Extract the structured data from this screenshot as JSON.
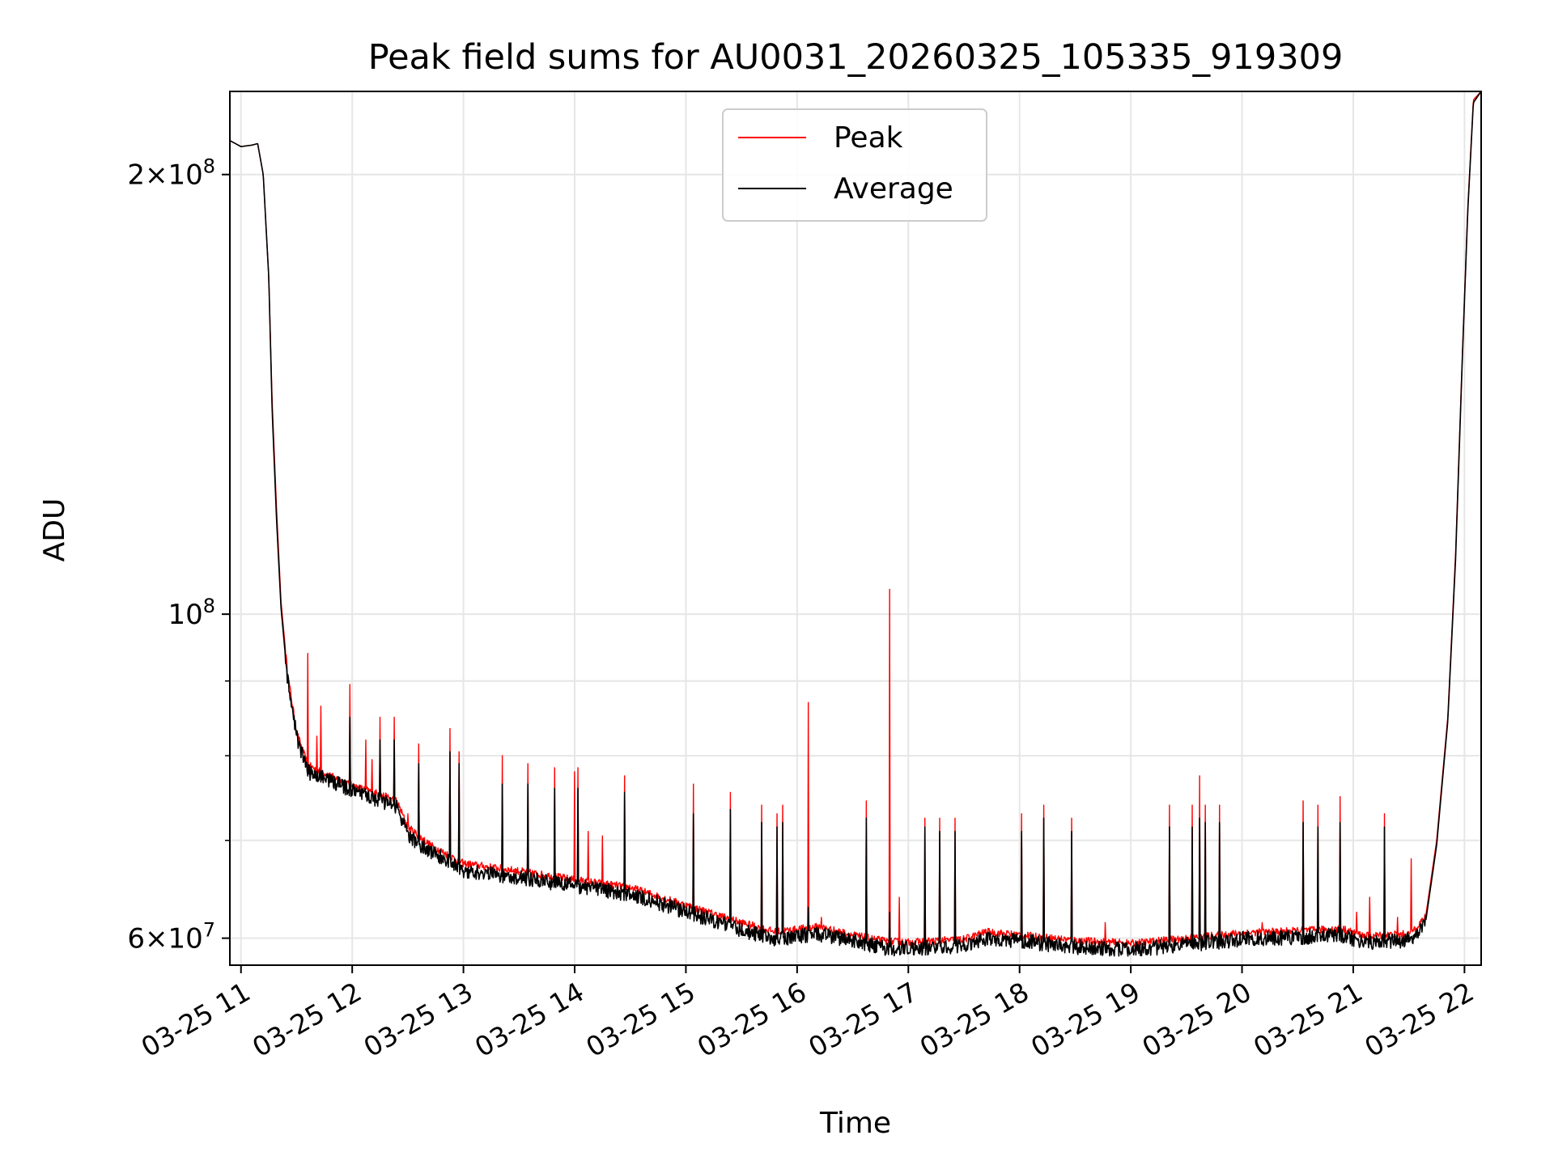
{
  "chart_data": {
    "type": "line",
    "title": "Peak field sums for AU0031_20260325_105335_919309",
    "xlabel": "Time",
    "ylabel": "ADU",
    "yscale": "log",
    "ylim": [
      57500000,
      228000000
    ],
    "xlim_hours": [
      10.9,
      22.15
    ],
    "grid": true,
    "legend_location": "upper center",
    "x_ticks": [
      {
        "hour": 11,
        "label": "03-25 11"
      },
      {
        "hour": 12,
        "label": "03-25 12"
      },
      {
        "hour": 13,
        "label": "03-25 13"
      },
      {
        "hour": 14,
        "label": "03-25 14"
      },
      {
        "hour": 15,
        "label": "03-25 15"
      },
      {
        "hour": 16,
        "label": "03-25 16"
      },
      {
        "hour": 17,
        "label": "03-25 17"
      },
      {
        "hour": 18,
        "label": "03-25 18"
      },
      {
        "hour": 19,
        "label": "03-25 19"
      },
      {
        "hour": 20,
        "label": "03-25 20"
      },
      {
        "hour": 21,
        "label": "03-25 21"
      },
      {
        "hour": 22,
        "label": "03-25 22"
      }
    ],
    "y_ticks_major": [
      {
        "value": 60000000,
        "base": "6×10",
        "exp": "7"
      },
      {
        "value": 100000000,
        "base": "10",
        "exp": "8"
      },
      {
        "value": 200000000,
        "base": "2×10",
        "exp": "8"
      }
    ],
    "y_ticks_minor": [
      70000000,
      80000000,
      90000000
    ],
    "series": [
      {
        "name": "Peak",
        "color": "#ff0000",
        "baseline": [
          [
            10.9,
            211000000
          ],
          [
            11.0,
            209000000
          ],
          [
            11.1,
            209500000
          ],
          [
            11.15,
            210000000
          ],
          [
            11.2,
            200000000
          ],
          [
            11.25,
            170000000
          ],
          [
            11.28,
            140000000
          ],
          [
            11.32,
            118000000
          ],
          [
            11.36,
            102000000
          ],
          [
            11.42,
            91000000
          ],
          [
            11.5,
            83000000
          ],
          [
            11.6,
            78800000
          ],
          [
            11.8,
            77500000
          ],
          [
            12.0,
            76300000
          ],
          [
            12.2,
            75500000
          ],
          [
            12.4,
            74500000
          ],
          [
            12.5,
            71500000
          ],
          [
            12.7,
            69500000
          ],
          [
            13.0,
            67500000
          ],
          [
            13.5,
            66700000
          ],
          [
            14.0,
            65800000
          ],
          [
            14.5,
            65000000
          ],
          [
            15.0,
            63200000
          ],
          [
            15.5,
            61500000
          ],
          [
            15.8,
            60600000
          ],
          [
            16.2,
            61100000
          ],
          [
            16.5,
            60300000
          ],
          [
            16.8,
            59700000
          ],
          [
            17.0,
            59600000
          ],
          [
            17.5,
            59900000
          ],
          [
            17.7,
            60600000
          ],
          [
            18.0,
            60300000
          ],
          [
            18.5,
            59800000
          ],
          [
            19.0,
            59500000
          ],
          [
            19.5,
            60000000
          ],
          [
            20.0,
            60500000
          ],
          [
            20.5,
            60700000
          ],
          [
            20.9,
            60900000
          ],
          [
            21.1,
            60200000
          ],
          [
            21.5,
            60400000
          ],
          [
            21.65,
            62000000
          ],
          [
            21.75,
            70000000
          ],
          [
            21.85,
            85000000
          ],
          [
            21.92,
            110000000
          ],
          [
            21.98,
            150000000
          ],
          [
            22.03,
            190000000
          ],
          [
            22.08,
            225000000
          ],
          [
            22.15,
            228000000
          ]
        ],
        "spikes": [
          [
            11.6,
            94000000
          ],
          [
            11.68,
            82500000
          ],
          [
            11.72,
            86500000
          ],
          [
            11.98,
            89500000
          ],
          [
            12.12,
            82000000
          ],
          [
            12.18,
            79500000
          ],
          [
            12.25,
            85000000
          ],
          [
            12.38,
            85000000
          ],
          [
            12.5,
            73000000
          ],
          [
            12.6,
            81500000
          ],
          [
            12.88,
            83500000
          ],
          [
            12.96,
            80500000
          ],
          [
            13.35,
            80000000
          ],
          [
            13.58,
            79000000
          ],
          [
            13.82,
            78500000
          ],
          [
            14.0,
            78000000
          ],
          [
            14.03,
            78500000
          ],
          [
            14.12,
            71000000
          ],
          [
            14.25,
            70500000
          ],
          [
            14.45,
            77500000
          ],
          [
            15.07,
            76500000
          ],
          [
            15.4,
            75500000
          ],
          [
            15.68,
            74000000
          ],
          [
            15.82,
            73000000
          ],
          [
            15.87,
            74000000
          ],
          [
            16.1,
            87000000
          ],
          [
            16.22,
            62000000
          ],
          [
            16.62,
            74500000
          ],
          [
            16.83,
            104000000
          ],
          [
            16.92,
            64000000
          ],
          [
            17.15,
            72500000
          ],
          [
            17.28,
            72500000
          ],
          [
            17.42,
            72500000
          ],
          [
            18.02,
            73000000
          ],
          [
            18.22,
            74000000
          ],
          [
            18.47,
            72500000
          ],
          [
            18.77,
            61500000
          ],
          [
            19.35,
            74000000
          ],
          [
            19.55,
            74000000
          ],
          [
            19.62,
            77500000
          ],
          [
            19.67,
            74000000
          ],
          [
            19.8,
            74000000
          ],
          [
            20.18,
            61500000
          ],
          [
            20.55,
            74500000
          ],
          [
            20.68,
            74000000
          ],
          [
            20.88,
            75000000
          ],
          [
            21.03,
            62500000
          ],
          [
            21.15,
            64000000
          ],
          [
            21.28,
            73000000
          ],
          [
            21.4,
            62000000
          ],
          [
            21.52,
            68000000
          ]
        ]
      },
      {
        "name": "Average",
        "color": "#000000",
        "baseline": [
          [
            10.9,
            211000000
          ],
          [
            11.0,
            209000000
          ],
          [
            11.1,
            209500000
          ],
          [
            11.15,
            210000000
          ],
          [
            11.2,
            200000000
          ],
          [
            11.25,
            170000000
          ],
          [
            11.28,
            138000000
          ],
          [
            11.32,
            116000000
          ],
          [
            11.36,
            101000000
          ],
          [
            11.42,
            90000000
          ],
          [
            11.5,
            82500000
          ],
          [
            11.6,
            78000000
          ],
          [
            11.8,
            77000000
          ],
          [
            12.0,
            75700000
          ],
          [
            12.2,
            74800000
          ],
          [
            12.4,
            73800000
          ],
          [
            12.5,
            70500000
          ],
          [
            12.7,
            68800000
          ],
          [
            13.0,
            66800000
          ],
          [
            13.5,
            66000000
          ],
          [
            14.0,
            65200000
          ],
          [
            14.5,
            64300000
          ],
          [
            15.0,
            62600000
          ],
          [
            15.5,
            60800000
          ],
          [
            15.8,
            59900000
          ],
          [
            16.2,
            60400000
          ],
          [
            16.5,
            59700000
          ],
          [
            16.8,
            59100000
          ],
          [
            17.0,
            59000000
          ],
          [
            17.5,
            59300000
          ],
          [
            17.7,
            60000000
          ],
          [
            18.0,
            59700000
          ],
          [
            18.5,
            59200000
          ],
          [
            19.0,
            58900000
          ],
          [
            19.5,
            59400000
          ],
          [
            20.0,
            59900000
          ],
          [
            20.5,
            60100000
          ],
          [
            20.9,
            60300000
          ],
          [
            21.1,
            59600000
          ],
          [
            21.5,
            59800000
          ],
          [
            21.65,
            61500000
          ],
          [
            21.75,
            69500000
          ],
          [
            21.85,
            84500000
          ],
          [
            21.92,
            109000000
          ],
          [
            21.98,
            149000000
          ],
          [
            22.03,
            189000000
          ],
          [
            22.08,
            224000000
          ],
          [
            22.15,
            228000000
          ]
        ],
        "spikes": [
          [
            11.98,
            85000000
          ],
          [
            12.25,
            82000000
          ],
          [
            12.38,
            82000000
          ],
          [
            12.6,
            79000000
          ],
          [
            12.88,
            80500000
          ],
          [
            12.96,
            79000000
          ],
          [
            13.35,
            76500000
          ],
          [
            13.58,
            76500000
          ],
          [
            13.82,
            76000000
          ],
          [
            14.03,
            76000000
          ],
          [
            14.45,
            75500000
          ],
          [
            15.07,
            73000000
          ],
          [
            15.4,
            73500000
          ],
          [
            15.68,
            72000000
          ],
          [
            15.82,
            71500000
          ],
          [
            15.87,
            72000000
          ],
          [
            16.1,
            63000000
          ],
          [
            16.62,
            72500000
          ],
          [
            16.83,
            62500000
          ],
          [
            17.15,
            71500000
          ],
          [
            17.28,
            71000000
          ],
          [
            17.42,
            71000000
          ],
          [
            18.02,
            71000000
          ],
          [
            18.22,
            72500000
          ],
          [
            18.47,
            71000000
          ],
          [
            19.35,
            71500000
          ],
          [
            19.55,
            71500000
          ],
          [
            19.62,
            72500000
          ],
          [
            19.67,
            72000000
          ],
          [
            19.8,
            72000000
          ],
          [
            20.55,
            72000000
          ],
          [
            20.68,
            71500000
          ],
          [
            20.88,
            72000000
          ],
          [
            21.28,
            71500000
          ]
        ]
      }
    ]
  }
}
